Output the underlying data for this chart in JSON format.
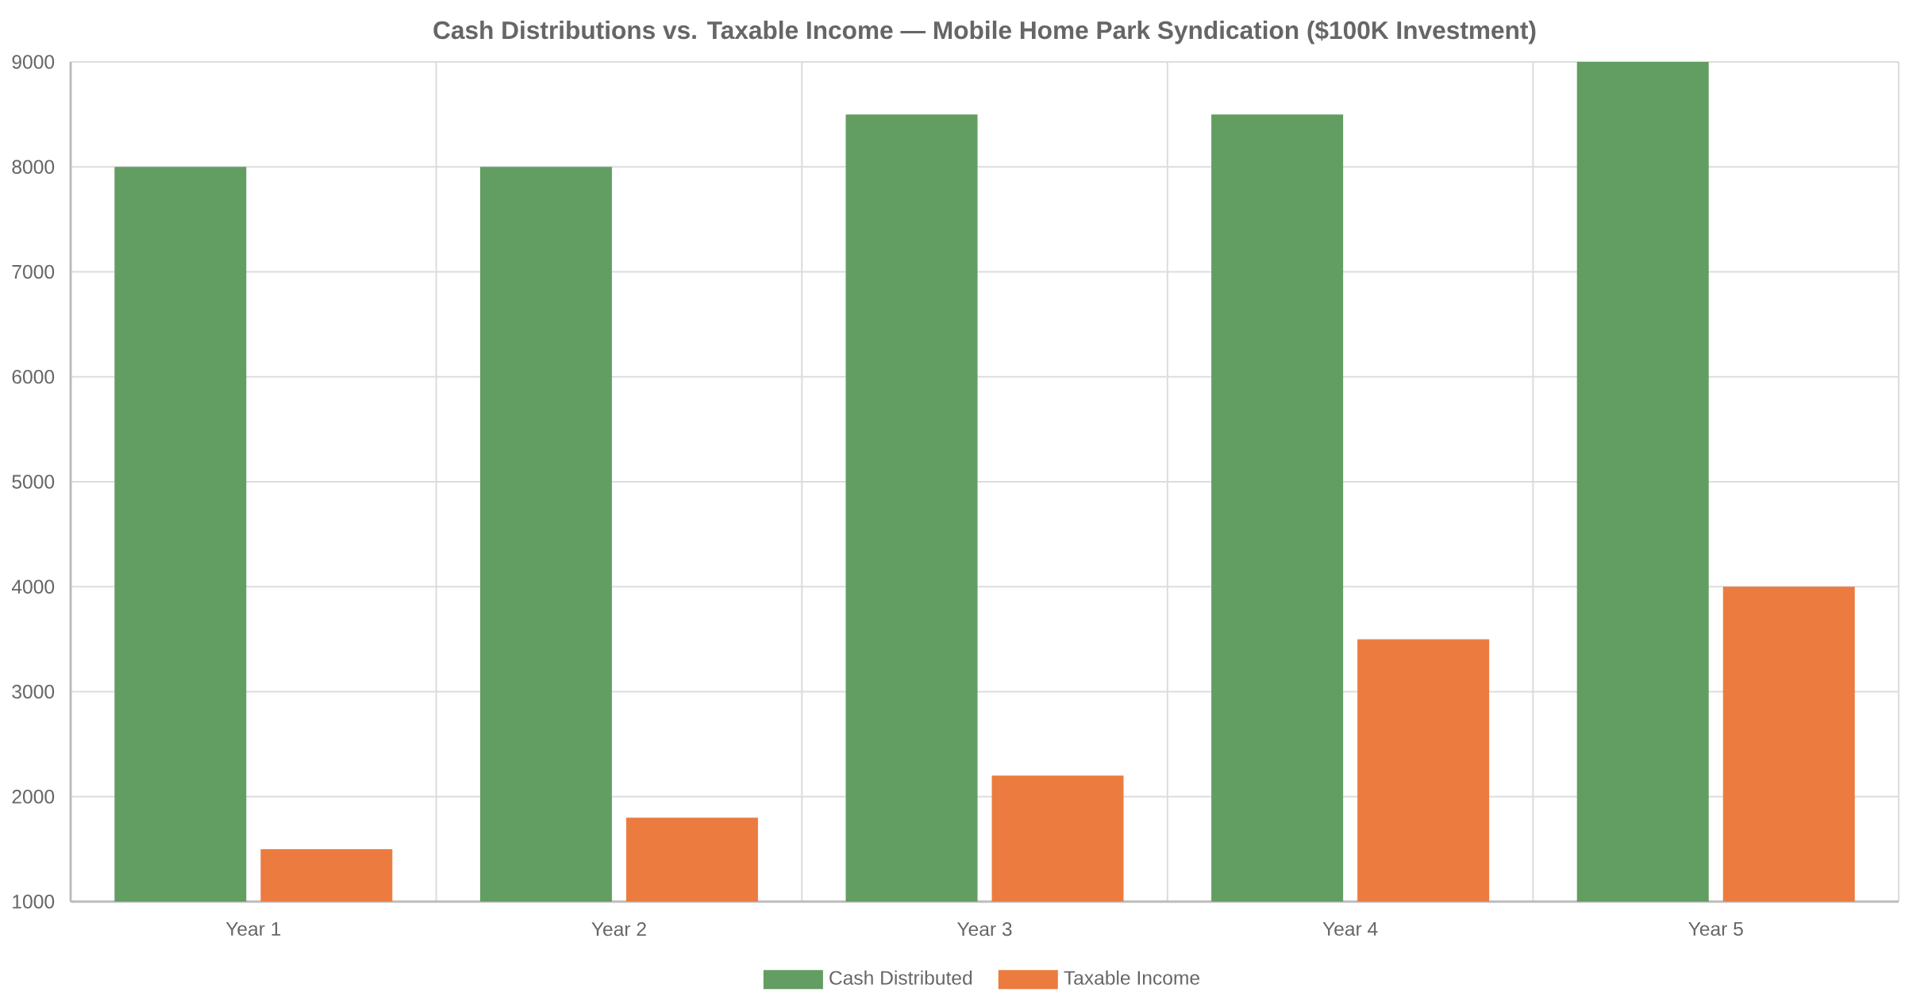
{
  "chart_data": {
    "type": "bar",
    "title": "Cash Distributions vs. Taxable Income — Mobile Home Park Syndication ($100K Investment)",
    "categories": [
      "Year 1",
      "Year 2",
      "Year 3",
      "Year 4",
      "Year 5"
    ],
    "series": [
      {
        "name": "Cash Distributed",
        "color": "#629d62",
        "values": [
          8000,
          8000,
          8500,
          8500,
          9000
        ]
      },
      {
        "name": "Taxable Income",
        "color": "#ec7b40",
        "values": [
          1500,
          1800,
          2200,
          3500,
          4000
        ]
      }
    ],
    "ylim": [
      1000,
      9000
    ],
    "yticks": [
      1000,
      2000,
      3000,
      4000,
      5000,
      6000,
      7000,
      8000,
      9000
    ],
    "grid": true,
    "legend": "bottom"
  }
}
